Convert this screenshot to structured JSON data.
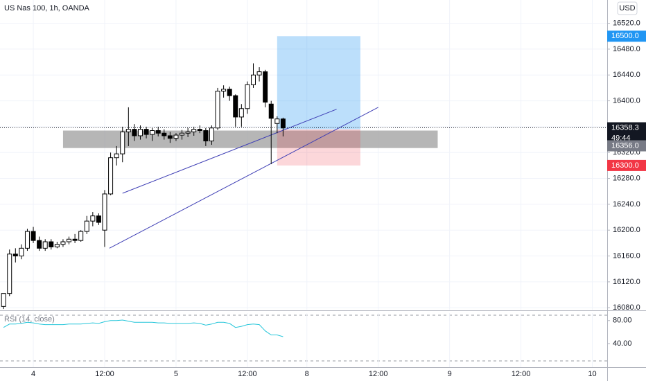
{
  "chart_data": [
    {
      "type": "candlestick",
      "title": "US Nas 100, 1h, OANDA",
      "currency": "USD",
      "x": [
        -5,
        -4,
        -3,
        -2,
        -1,
        0,
        1,
        2,
        3,
        4,
        5,
        6,
        7,
        8,
        9,
        10,
        11,
        12,
        13,
        14,
        15,
        16,
        17,
        18,
        19,
        20,
        21,
        22,
        23,
        24,
        25,
        26,
        27,
        28,
        29,
        30,
        31,
        32,
        33,
        34,
        35,
        36,
        37,
        38,
        39,
        40,
        41,
        42
      ],
      "open": [
        16082,
        16102,
        16163,
        16160,
        16172,
        16198,
        16184,
        16172,
        16182,
        16174,
        16178,
        16182,
        16186,
        16184,
        16198,
        16214,
        16222,
        16200,
        16256,
        16312,
        16318,
        16352,
        16356,
        16346,
        16356,
        16348,
        16354,
        16350,
        16346,
        16342,
        16347,
        16350,
        16352,
        16356,
        16354,
        16338,
        16358,
        16415,
        16418,
        16408,
        16375,
        16388,
        16425,
        16440,
        16445,
        16395,
        16365,
        16372
      ],
      "high": [
        16100,
        16170,
        16172,
        16178,
        16202,
        16205,
        16190,
        16186,
        16186,
        16182,
        16186,
        16190,
        16194,
        16200,
        16222,
        16228,
        16226,
        16262,
        16320,
        16330,
        16360,
        16390,
        16364,
        16362,
        16360,
        16358,
        16360,
        16356,
        16352,
        16350,
        16355,
        16358,
        16360,
        16362,
        16358,
        16362,
        16420,
        16424,
        16422,
        16410,
        16395,
        16430,
        16458,
        16452,
        16448,
        16400,
        16376,
        16374
      ],
      "low": [
        16078,
        16098,
        16150,
        16155,
        16168,
        16180,
        16168,
        16168,
        16170,
        16172,
        16174,
        16178,
        16180,
        16182,
        16194,
        16206,
        16208,
        16174,
        16254,
        16300,
        16305,
        16330,
        16338,
        16340,
        16342,
        16338,
        16345,
        16340,
        16335,
        16338,
        16340,
        16344,
        16346,
        16350,
        16330,
        16332,
        16355,
        16405,
        16400,
        16360,
        16360,
        16380,
        16420,
        16430,
        16390,
        16302,
        16350,
        16345
      ],
      "close": [
        16102,
        16163,
        16160,
        16172,
        16198,
        16184,
        16172,
        16182,
        16174,
        16178,
        16182,
        16186,
        16184,
        16198,
        16214,
        16222,
        16212,
        16256,
        16312,
        16318,
        16352,
        16356,
        16346,
        16356,
        16348,
        16354,
        16350,
        16346,
        16342,
        16347,
        16350,
        16352,
        16356,
        16354,
        16338,
        16358,
        16415,
        16418,
        16408,
        16375,
        16388,
        16425,
        16440,
        16445,
        16398,
        16373,
        16372,
        16358
      ],
      "up_color": "#ffffff",
      "down_color": "#000000",
      "border_color": "#000000",
      "xlim": [
        -5.6,
        96.5
      ],
      "xticks": [
        {
          "value": 0,
          "label": "4"
        },
        {
          "value": 12,
          "label": "12:00"
        },
        {
          "value": 24,
          "label": "5"
        },
        {
          "value": 36,
          "label": "12:00"
        },
        {
          "value": 46,
          "label": "8"
        },
        {
          "value": 58,
          "label": "12:00"
        },
        {
          "value": 70,
          "label": "9"
        },
        {
          "value": 82,
          "label": "12:00"
        },
        {
          "value": 94,
          "label": "10"
        }
      ],
      "ylim": [
        16077,
        16556
      ],
      "yticks": [
        {
          "value": 16080,
          "label": "16080.0"
        },
        {
          "value": 16120,
          "label": "16120.0"
        },
        {
          "value": 16160,
          "label": "16160.0"
        },
        {
          "value": 16200,
          "label": "16200.0"
        },
        {
          "value": 16240,
          "label": "16240.0"
        },
        {
          "value": 16280,
          "label": "16280.0"
        },
        {
          "value": 16320,
          "label": "16320.0"
        },
        {
          "value": 16360,
          "label": "16360.0"
        },
        {
          "value": 16400,
          "label": "16400.0"
        },
        {
          "value": 16440,
          "label": "16440.0"
        },
        {
          "value": 16480,
          "label": "16480.0"
        },
        {
          "value": 16520,
          "label": "16520.0"
        }
      ],
      "grid": true,
      "last_price": 16358.3,
      "countdown": "49:44",
      "position": {
        "x": [
          41,
          55
        ],
        "target": {
          "value": 16500,
          "label": "16500.0"
        },
        "entry": {
          "value": 16356,
          "label": "16356.0"
        },
        "stop": {
          "value": 16300,
          "label": "16300.0"
        },
        "target_color": "#2196f3",
        "entry_color": "#787b86",
        "stop_color": "#f23645"
      },
      "zone": {
        "x": [
          5,
          68
        ],
        "y": [
          16327,
          16354
        ],
        "color": "#9e9e9e"
      },
      "trend_lines": [
        {
          "x": [
            15,
            51
          ],
          "y": [
            16257,
            16387
          ],
          "color": "#3f3fb5"
        },
        {
          "x": [
            12.8,
            58
          ],
          "y": [
            16172,
            16390
          ],
          "color": "#3f3fb5"
        }
      ]
    },
    {
      "type": "line",
      "title": "RSI (14, close)",
      "color": "#26c6da",
      "values": [
        68,
        74,
        74,
        75,
        77,
        76,
        74,
        73,
        73,
        73,
        73,
        74,
        74,
        74,
        75,
        76,
        75,
        78,
        80,
        80,
        81,
        79,
        77,
        77,
        77,
        77,
        76,
        76,
        75,
        75,
        75,
        75,
        76,
        75,
        72,
        74,
        77,
        77,
        75,
        68,
        70,
        73,
        74,
        73,
        62,
        55,
        55,
        52
      ],
      "ylim": [
        -1,
        93
      ],
      "yticks": [
        {
          "value": 40,
          "label": "40.00"
        },
        {
          "value": 80,
          "label": "80.00"
        }
      ]
    }
  ]
}
